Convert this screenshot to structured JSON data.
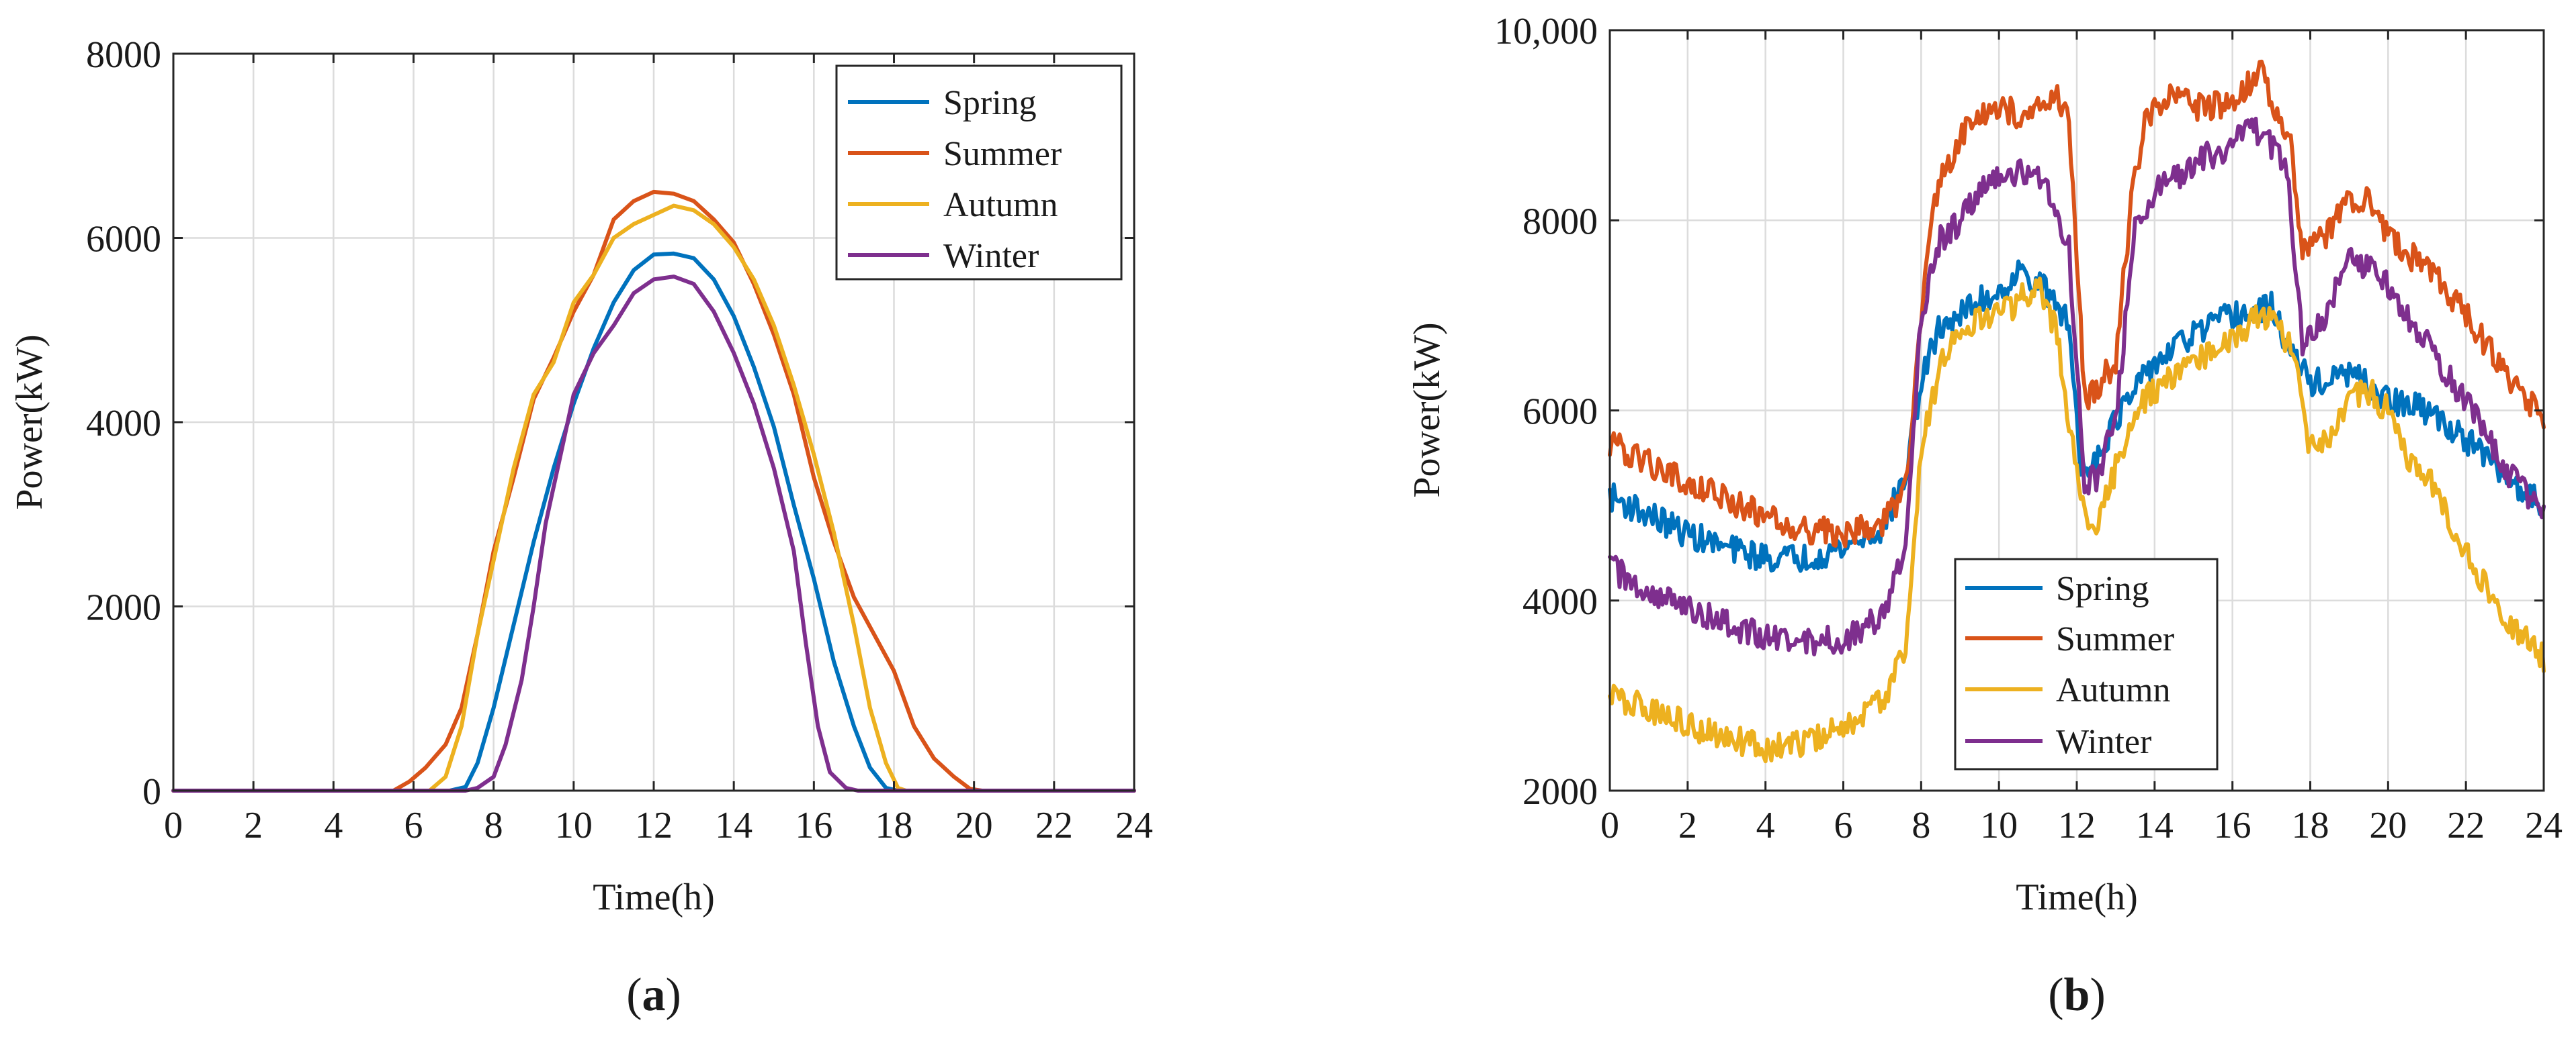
{
  "colors": {
    "Spring": "#0072BD",
    "Summer": "#D95319",
    "Autumn": "#EDB120",
    "Winter": "#7E2F8E"
  },
  "chart_data": [
    {
      "id": "a",
      "type": "line",
      "caption_open": "(",
      "caption_letter": "a",
      "caption_close": ")",
      "xlabel": "Time(h)",
      "ylabel": "Power(kW)",
      "xlim": [
        0,
        24
      ],
      "ylim": [
        0,
        8000
      ],
      "xticks": [
        0,
        2,
        4,
        6,
        8,
        10,
        12,
        14,
        16,
        18,
        20,
        22,
        24
      ],
      "yticks": [
        0,
        2000,
        4000,
        6000,
        8000
      ],
      "ytick_labels": [
        "0",
        "2000",
        "4000",
        "6000",
        "8000"
      ],
      "grid": true,
      "legend_position": "top-right",
      "noise": 0,
      "series": [
        {
          "name": "Spring",
          "points": [
            [
              0,
              0
            ],
            [
              6.9,
              0
            ],
            [
              7.3,
              40
            ],
            [
              7.6,
              300
            ],
            [
              8,
              900
            ],
            [
              8.5,
              1800
            ],
            [
              9,
              2700
            ],
            [
              9.5,
              3500
            ],
            [
              10,
              4200
            ],
            [
              10.5,
              4800
            ],
            [
              11,
              5300
            ],
            [
              11.5,
              5650
            ],
            [
              12,
              5820
            ],
            [
              12.5,
              5830
            ],
            [
              13,
              5780
            ],
            [
              13.5,
              5550
            ],
            [
              14,
              5150
            ],
            [
              14.5,
              4600
            ],
            [
              15,
              3950
            ],
            [
              15.5,
              3100
            ],
            [
              16,
              2300
            ],
            [
              16.5,
              1400
            ],
            [
              17,
              700
            ],
            [
              17.4,
              250
            ],
            [
              17.8,
              30
            ],
            [
              18.1,
              0
            ],
            [
              24,
              0
            ]
          ]
        },
        {
          "name": "Summer",
          "points": [
            [
              0,
              0
            ],
            [
              5.5,
              0
            ],
            [
              5.9,
              100
            ],
            [
              6.3,
              250
            ],
            [
              6.8,
              500
            ],
            [
              7.2,
              900
            ],
            [
              7.6,
              1700
            ],
            [
              8,
              2600
            ],
            [
              8.5,
              3400
            ],
            [
              9,
              4250
            ],
            [
              9.5,
              4700
            ],
            [
              10,
              5200
            ],
            [
              10.5,
              5600
            ],
            [
              11,
              6200
            ],
            [
              11.5,
              6400
            ],
            [
              12,
              6500
            ],
            [
              12.5,
              6480
            ],
            [
              13,
              6400
            ],
            [
              13.5,
              6200
            ],
            [
              14,
              5950
            ],
            [
              14.5,
              5500
            ],
            [
              15,
              4950
            ],
            [
              15.5,
              4300
            ],
            [
              16,
              3400
            ],
            [
              16.5,
              2700
            ],
            [
              17,
              2100
            ],
            [
              17.5,
              1700
            ],
            [
              18,
              1300
            ],
            [
              18.5,
              700
            ],
            [
              19,
              350
            ],
            [
              19.5,
              150
            ],
            [
              19.9,
              20
            ],
            [
              20.2,
              0
            ],
            [
              24,
              0
            ]
          ]
        },
        {
          "name": "Autumn",
          "points": [
            [
              0,
              0
            ],
            [
              6.4,
              0
            ],
            [
              6.8,
              150
            ],
            [
              7.2,
              700
            ],
            [
              7.6,
              1700
            ],
            [
              8,
              2500
            ],
            [
              8.5,
              3500
            ],
            [
              9,
              4300
            ],
            [
              9.5,
              4650
            ],
            [
              10,
              5300
            ],
            [
              10.5,
              5600
            ],
            [
              11,
              6000
            ],
            [
              11.5,
              6150
            ],
            [
              12,
              6250
            ],
            [
              12.5,
              6350
            ],
            [
              13,
              6300
            ],
            [
              13.5,
              6150
            ],
            [
              14,
              5900
            ],
            [
              14.5,
              5550
            ],
            [
              15,
              5050
            ],
            [
              15.5,
              4400
            ],
            [
              16,
              3650
            ],
            [
              16.5,
              2800
            ],
            [
              17,
              1800
            ],
            [
              17.4,
              900
            ],
            [
              17.8,
              300
            ],
            [
              18.1,
              30
            ],
            [
              18.3,
              0
            ],
            [
              24,
              0
            ]
          ]
        },
        {
          "name": "Winter",
          "points": [
            [
              0,
              0
            ],
            [
              7.3,
              0
            ],
            [
              7.6,
              30
            ],
            [
              8,
              150
            ],
            [
              8.3,
              500
            ],
            [
              8.7,
              1200
            ],
            [
              9,
              2000
            ],
            [
              9.3,
              2900
            ],
            [
              9.7,
              3700
            ],
            [
              10,
              4300
            ],
            [
              10.5,
              4750
            ],
            [
              11,
              5050
            ],
            [
              11.5,
              5400
            ],
            [
              12,
              5550
            ],
            [
              12.5,
              5580
            ],
            [
              13,
              5500
            ],
            [
              13.5,
              5200
            ],
            [
              14,
              4750
            ],
            [
              14.5,
              4200
            ],
            [
              15,
              3500
            ],
            [
              15.5,
              2600
            ],
            [
              15.8,
              1600
            ],
            [
              16.1,
              700
            ],
            [
              16.4,
              200
            ],
            [
              16.8,
              30
            ],
            [
              17.1,
              0
            ],
            [
              24,
              0
            ]
          ]
        }
      ]
    },
    {
      "id": "b",
      "type": "line",
      "caption_open": "(",
      "caption_letter": "b",
      "caption_close": ")",
      "xlabel": "Time(h)",
      "ylabel": "Power(kW)",
      "xlim": [
        0,
        24
      ],
      "ylim": [
        2000,
        10000
      ],
      "xticks": [
        0,
        2,
        4,
        6,
        8,
        10,
        12,
        14,
        16,
        18,
        20,
        22,
        24
      ],
      "yticks": [
        2000,
        4000,
        6000,
        8000,
        10000
      ],
      "ytick_labels": [
        "2000",
        "4000",
        "6000",
        "8000",
        "10,000"
      ],
      "grid": true,
      "legend_position": "bottom-center",
      "noise": 150,
      "series": [
        {
          "name": "Spring",
          "points": [
            [
              0,
              5100
            ],
            [
              1,
              4900
            ],
            [
              2,
              4700
            ],
            [
              3,
              4550
            ],
            [
              4,
              4450
            ],
            [
              5,
              4450
            ],
            [
              6,
              4550
            ],
            [
              7,
              4750
            ],
            [
              7.6,
              5300
            ],
            [
              8,
              6300
            ],
            [
              8.5,
              6900
            ],
            [
              9,
              7000
            ],
            [
              9.5,
              7150
            ],
            [
              10,
              7250
            ],
            [
              10.5,
              7450
            ],
            [
              11,
              7350
            ],
            [
              11.5,
              7100
            ],
            [
              11.8,
              6900
            ],
            [
              12.1,
              5400
            ],
            [
              12.5,
              5500
            ],
            [
              13,
              5900
            ],
            [
              13.5,
              6200
            ],
            [
              14,
              6500
            ],
            [
              15,
              6800
            ],
            [
              16,
              7000
            ],
            [
              16.5,
              7000
            ],
            [
              17,
              7100
            ],
            [
              17.5,
              6600
            ],
            [
              18,
              6300
            ],
            [
              18.5,
              6300
            ],
            [
              19,
              6400
            ],
            [
              20,
              6100
            ],
            [
              21,
              6000
            ],
            [
              22,
              5700
            ],
            [
              23,
              5300
            ],
            [
              24,
              5000
            ]
          ]
        },
        {
          "name": "Summer",
          "points": [
            [
              0,
              5650
            ],
            [
              1,
              5450
            ],
            [
              2,
              5250
            ],
            [
              3,
              5050
            ],
            [
              4,
              4900
            ],
            [
              5,
              4750
            ],
            [
              6,
              4700
            ],
            [
              7,
              4800
            ],
            [
              7.6,
              5200
            ],
            [
              8,
              7000
            ],
            [
              8.3,
              8200
            ],
            [
              8.7,
              8600
            ],
            [
              9,
              8900
            ],
            [
              9.5,
              9150
            ],
            [
              10,
              9200
            ],
            [
              10.5,
              9100
            ],
            [
              11,
              9200
            ],
            [
              11.5,
              9300
            ],
            [
              11.8,
              9100
            ],
            [
              12.2,
              6100
            ],
            [
              13,
              6500
            ],
            [
              13.4,
              8200
            ],
            [
              13.8,
              9100
            ],
            [
              14.5,
              9300
            ],
            [
              15,
              9200
            ],
            [
              16,
              9200
            ],
            [
              16.7,
              9600
            ],
            [
              17,
              9300
            ],
            [
              17.5,
              8800
            ],
            [
              17.8,
              7700
            ],
            [
              18.3,
              7800
            ],
            [
              19,
              8200
            ],
            [
              19.5,
              8250
            ],
            [
              20,
              7800
            ],
            [
              21,
              7500
            ],
            [
              22,
              7000
            ],
            [
              23,
              6400
            ],
            [
              24,
              5900
            ]
          ]
        },
        {
          "name": "Autumn",
          "points": [
            [
              0,
              3000
            ],
            [
              1,
              2850
            ],
            [
              2,
              2700
            ],
            [
              3,
              2550
            ],
            [
              4,
              2450
            ],
            [
              5,
              2500
            ],
            [
              6,
              2650
            ],
            [
              7,
              2950
            ],
            [
              7.6,
              3500
            ],
            [
              8,
              5600
            ],
            [
              8.5,
              6500
            ],
            [
              9,
              6800
            ],
            [
              9.5,
              6950
            ],
            [
              10,
              7000
            ],
            [
              10.5,
              7150
            ],
            [
              11,
              7350
            ],
            [
              11.5,
              6800
            ],
            [
              12.1,
              5000
            ],
            [
              12.5,
              4750
            ],
            [
              13,
              5400
            ],
            [
              13.5,
              6000
            ],
            [
              14,
              6200
            ],
            [
              15,
              6500
            ],
            [
              16,
              6800
            ],
            [
              16.8,
              7000
            ],
            [
              17.5,
              6700
            ],
            [
              18,
              5600
            ],
            [
              18.5,
              5700
            ],
            [
              19,
              6100
            ],
            [
              19.5,
              6200
            ],
            [
              20,
              6000
            ],
            [
              20.5,
              5500
            ],
            [
              21,
              5300
            ],
            [
              22,
              4500
            ],
            [
              23,
              3800
            ],
            [
              24,
              3400
            ]
          ]
        },
        {
          "name": "Winter",
          "points": [
            [
              0,
              4350
            ],
            [
              1,
              4100
            ],
            [
              2,
              3900
            ],
            [
              3,
              3750
            ],
            [
              4,
              3600
            ],
            [
              5,
              3550
            ],
            [
              6,
              3600
            ],
            [
              7,
              3850
            ],
            [
              7.6,
              4500
            ],
            [
              8,
              7000
            ],
            [
              8.5,
              7800
            ],
            [
              9,
              8000
            ],
            [
              9.5,
              8300
            ],
            [
              10,
              8500
            ],
            [
              10.5,
              8500
            ],
            [
              11,
              8450
            ],
            [
              11.5,
              8100
            ],
            [
              11.8,
              7700
            ],
            [
              12.2,
              5200
            ],
            [
              12.5,
              5300
            ],
            [
              13,
              5900
            ],
            [
              13.5,
              7900
            ],
            [
              14,
              8300
            ],
            [
              15,
              8600
            ],
            [
              16,
              8800
            ],
            [
              16.5,
              9000
            ],
            [
              17,
              8800
            ],
            [
              17.4,
              8500
            ],
            [
              17.8,
              6700
            ],
            [
              18.3,
              6900
            ],
            [
              19,
              7600
            ],
            [
              19.5,
              7500
            ],
            [
              20,
              7300
            ],
            [
              21,
              6700
            ],
            [
              22,
              6100
            ],
            [
              23,
              5400
            ],
            [
              24,
              4900
            ]
          ]
        }
      ]
    }
  ]
}
